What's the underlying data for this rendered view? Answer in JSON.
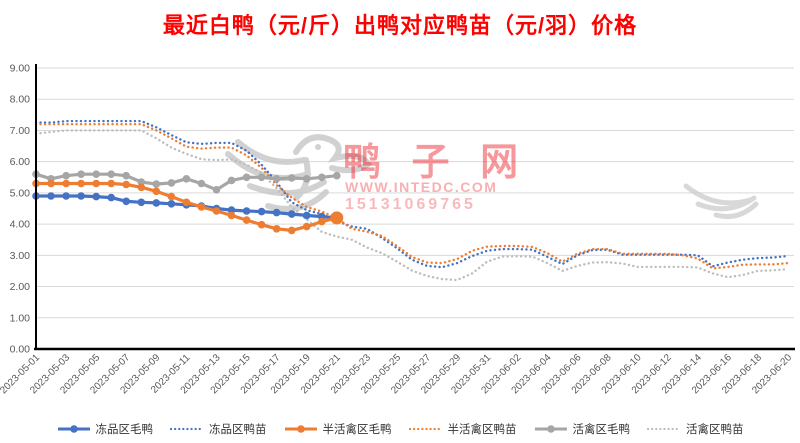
{
  "page": {
    "background": "#FFFFFF"
  },
  "title": {
    "text": "最近白鸭（元/斤）出鸭对应鸭苗（元/羽）价格",
    "color": "#FF0000"
  },
  "watermark": {
    "brand": "鸭 子 网",
    "url": "WWW.INTEDC.COM",
    "phone": "15131069765",
    "logo": "duck-logo",
    "color": "#ED1C24"
  },
  "chart_data": {
    "type": "line",
    "title": "最近白鸭（元/斤）出鸭对应鸭苗（元/羽）价格",
    "xlabel": "",
    "ylabel": "",
    "ylim": [
      0,
      9
    ],
    "y_tick_labels": [
      "9.00",
      "8.00",
      "7.00",
      "6.00",
      "5.00",
      "4.00",
      "3.00",
      "2.00",
      "1.00",
      "0.00"
    ],
    "grid": true,
    "legend_position": "bottom",
    "x": [
      "2023-05-01",
      "2023-05-02",
      "2023-05-03",
      "2023-05-04",
      "2023-05-05",
      "2023-05-06",
      "2023-05-07",
      "2023-05-08",
      "2023-05-09",
      "2023-05-10",
      "2023-05-11",
      "2023-05-12",
      "2023-05-13",
      "2023-05-14",
      "2023-05-15",
      "2023-05-16",
      "2023-05-17",
      "2023-05-18",
      "2023-05-19",
      "2023-05-20",
      "2023-05-21",
      "2023-05-22",
      "2023-05-23",
      "2023-05-24",
      "2023-05-25",
      "2023-05-26",
      "2023-05-27",
      "2023-05-28",
      "2023-05-29",
      "2023-05-30",
      "2023-05-31",
      "2023-06-01",
      "2023-06-02",
      "2023-06-03",
      "2023-06-04",
      "2023-06-05",
      "2023-06-06",
      "2023-06-07",
      "2023-06-08",
      "2023-06-09",
      "2023-06-10",
      "2023-06-11",
      "2023-06-12",
      "2023-06-13",
      "2023-06-14",
      "2023-06-15",
      "2023-06-16",
      "2023-06-17",
      "2023-06-18",
      "2023-06-19",
      "2023-06-20"
    ],
    "x_tick_labels": [
      "2023-05-01",
      "2023-05-03",
      "2023-05-05",
      "2023-05-07",
      "2023-05-09",
      "2023-05-11",
      "2023-05-13",
      "2023-05-15",
      "2023-05-17",
      "2023-05-19",
      "2023-05-21",
      "2023-05-23",
      "2023-05-25",
      "2023-05-27",
      "2023-05-29",
      "2023-05-31",
      "2023-06-02",
      "2023-06-04",
      "2023-06-06",
      "2023-06-08",
      "2023-06-10",
      "2023-06-12",
      "2023-06-14",
      "2023-06-16",
      "2023-06-18",
      "2023-06-20"
    ],
    "series": [
      {
        "key": "frozen-duck",
        "name": "冻品区毛鸭",
        "color": "#4472C4",
        "line": "solid",
        "marker": true,
        "values": [
          4.9,
          4.9,
          4.9,
          4.9,
          4.88,
          4.85,
          4.73,
          4.7,
          4.68,
          4.65,
          4.62,
          4.58,
          4.5,
          4.45,
          4.42,
          4.4,
          4.37,
          4.32,
          4.28,
          4.24,
          4.2
        ]
      },
      {
        "key": "frozen-duckling",
        "name": "冻品区鸭苗",
        "color": "#4472C4",
        "line": "dotted",
        "marker": false,
        "values": [
          7.25,
          7.25,
          7.3,
          7.3,
          7.3,
          7.3,
          7.3,
          7.3,
          7.1,
          6.85,
          6.62,
          6.57,
          6.6,
          6.6,
          6.35,
          5.9,
          5.35,
          4.7,
          4.45,
          4.32,
          4.1,
          3.92,
          3.85,
          3.56,
          3.23,
          2.86,
          2.66,
          2.62,
          2.75,
          2.98,
          3.15,
          3.2,
          3.2,
          3.18,
          2.95,
          2.72,
          3.0,
          3.17,
          3.18,
          3.02,
          3.02,
          3.02,
          3.02,
          3.02,
          3.0,
          2.65,
          2.77,
          2.86,
          2.91,
          2.93,
          2.98
        ]
      },
      {
        "key": "semi-live-duck",
        "name": "半活禽区毛鸭",
        "color": "#ED7D31",
        "line": "solid",
        "marker": true,
        "end_marker_large": true,
        "values": [
          5.3,
          5.3,
          5.3,
          5.3,
          5.3,
          5.3,
          5.27,
          5.18,
          5.05,
          4.88,
          4.7,
          4.55,
          4.42,
          4.28,
          4.13,
          3.98,
          3.85,
          3.8,
          3.92,
          4.08,
          4.2
        ]
      },
      {
        "key": "semi-live-duckling",
        "name": "半活禽区鸭苗",
        "color": "#ED7D31",
        "line": "dotted",
        "marker": false,
        "values": [
          7.2,
          7.2,
          7.2,
          7.2,
          7.2,
          7.2,
          7.2,
          7.2,
          7.0,
          6.75,
          6.48,
          6.42,
          6.45,
          6.45,
          6.2,
          5.8,
          5.25,
          4.85,
          4.55,
          4.4,
          4.2,
          3.85,
          3.76,
          3.62,
          3.3,
          2.95,
          2.77,
          2.75,
          2.88,
          3.15,
          3.28,
          3.3,
          3.3,
          3.27,
          3.07,
          2.8,
          3.05,
          3.2,
          3.2,
          3.05,
          3.05,
          3.05,
          3.05,
          3.0,
          2.9,
          2.58,
          2.63,
          2.7,
          2.71,
          2.71,
          2.75
        ]
      },
      {
        "key": "live-duck",
        "name": "活禽区毛鸭",
        "color": "#A6A6A6",
        "line": "solid",
        "marker": true,
        "values": [
          5.6,
          5.45,
          5.55,
          5.6,
          5.6,
          5.6,
          5.55,
          5.35,
          5.28,
          5.32,
          5.45,
          5.3,
          5.1,
          5.4,
          5.5,
          5.5,
          5.45,
          5.48,
          5.45,
          5.5,
          5.55
        ]
      },
      {
        "key": "live-duckling",
        "name": "活禽区鸭苗",
        "color": "#BDBDBD",
        "line": "dotted",
        "marker": false,
        "values": [
          6.9,
          6.95,
          7.0,
          7.0,
          7.0,
          7.0,
          7.0,
          7.0,
          6.75,
          6.45,
          6.25,
          6.08,
          6.05,
          6.07,
          5.9,
          5.63,
          5.15,
          4.55,
          4.15,
          3.75,
          3.6,
          3.5,
          3.25,
          3.07,
          2.8,
          2.51,
          2.34,
          2.24,
          2.21,
          2.42,
          2.8,
          2.96,
          2.97,
          2.96,
          2.75,
          2.5,
          2.66,
          2.77,
          2.78,
          2.74,
          2.63,
          2.63,
          2.63,
          2.63,
          2.61,
          2.42,
          2.3,
          2.37,
          2.5,
          2.52,
          2.56
        ]
      }
    ]
  }
}
